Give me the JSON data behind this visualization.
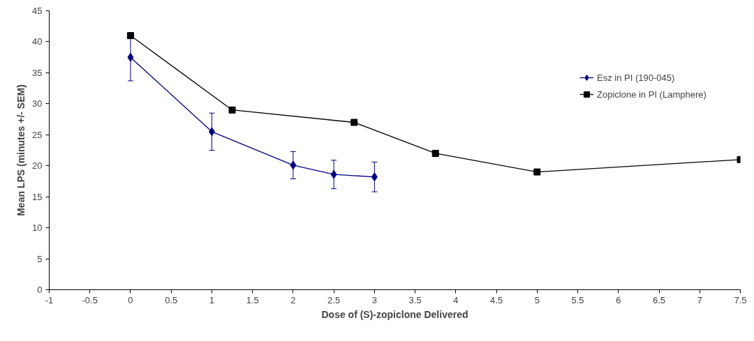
{
  "chart_data": {
    "type": "line",
    "xlabel": "Dose of (S)-zopiclone Delivered",
    "ylabel": "Mean LPS (minutes +/- SEM)",
    "xlim": [
      -1,
      7.5
    ],
    "xticks": [
      -1,
      -0.5,
      0,
      0.5,
      1,
      1.5,
      2,
      2.5,
      3,
      3.5,
      4,
      4.5,
      5,
      5.5,
      6,
      6.5,
      7,
      7.5
    ],
    "ylim": [
      0,
      45
    ],
    "yticks": [
      0,
      5,
      10,
      15,
      20,
      25,
      30,
      35,
      40,
      45
    ],
    "grid": false,
    "legend": "right",
    "series": [
      {
        "name": "Esz in PI (190-045)",
        "color": "#000080",
        "marker": "diamond",
        "x": [
          0,
          1,
          2,
          2.5,
          3
        ],
        "values": [
          37.5,
          25.5,
          20.1,
          18.6,
          18.2
        ],
        "errors": [
          3.8,
          3.0,
          2.2,
          2.3,
          2.4
        ]
      },
      {
        "name": "Zopiclone in PI (Lamphere)",
        "color": "#000000",
        "marker": "square",
        "x": [
          0,
          1.25,
          2.75,
          3.75,
          5,
          7.5
        ],
        "values": [
          41,
          29,
          27,
          22,
          19,
          21
        ]
      }
    ]
  }
}
